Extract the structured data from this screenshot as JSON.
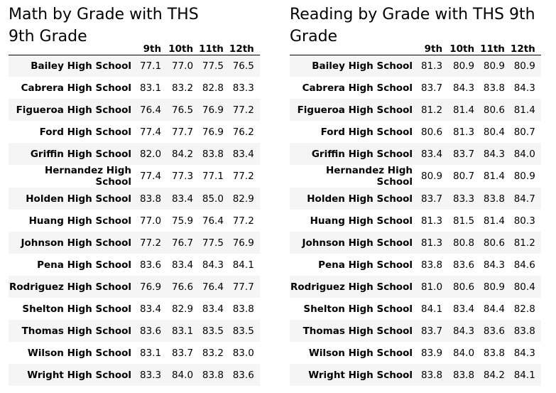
{
  "math": {
    "title": "Math by Grade with THS 9th Grade",
    "columns": [
      "9th",
      "10th",
      "11th",
      "12th"
    ],
    "rows": [
      {
        "school": "Bailey High School",
        "values": [
          "77.1",
          "77.0",
          "77.5",
          "76.5"
        ]
      },
      {
        "school": "Cabrera High School",
        "values": [
          "83.1",
          "83.2",
          "82.8",
          "83.3"
        ]
      },
      {
        "school": "Figueroa High School",
        "values": [
          "76.4",
          "76.5",
          "76.9",
          "77.2"
        ]
      },
      {
        "school": "Ford High School",
        "values": [
          "77.4",
          "77.7",
          "76.9",
          "76.2"
        ]
      },
      {
        "school": "Griffin High School",
        "values": [
          "82.0",
          "84.2",
          "83.8",
          "83.4"
        ]
      },
      {
        "school": "Hernandez High School",
        "values": [
          "77.4",
          "77.3",
          "77.1",
          "77.2"
        ]
      },
      {
        "school": "Holden High School",
        "values": [
          "83.8",
          "83.4",
          "85.0",
          "82.9"
        ]
      },
      {
        "school": "Huang High School",
        "values": [
          "77.0",
          "75.9",
          "76.4",
          "77.2"
        ]
      },
      {
        "school": "Johnson High School",
        "values": [
          "77.2",
          "76.7",
          "77.5",
          "76.9"
        ]
      },
      {
        "school": "Pena High School",
        "values": [
          "83.6",
          "83.4",
          "84.3",
          "84.1"
        ]
      },
      {
        "school": "Rodriguez High School",
        "values": [
          "76.9",
          "76.6",
          "76.4",
          "77.7"
        ]
      },
      {
        "school": "Shelton High School",
        "values": [
          "83.4",
          "82.9",
          "83.4",
          "83.8"
        ]
      },
      {
        "school": "Thomas High School",
        "values": [
          "83.6",
          "83.1",
          "83.5",
          "83.5"
        ]
      },
      {
        "school": "Wilson High School",
        "values": [
          "83.1",
          "83.7",
          "83.2",
          "83.0"
        ]
      },
      {
        "school": "Wright High School",
        "values": [
          "83.3",
          "84.0",
          "83.8",
          "83.6"
        ]
      }
    ]
  },
  "reading": {
    "title": "Reading by Grade with THS 9th Grade",
    "columns": [
      "9th",
      "10th",
      "11th",
      "12th"
    ],
    "rows": [
      {
        "school": "Bailey High School",
        "values": [
          "81.3",
          "80.9",
          "80.9",
          "80.9"
        ]
      },
      {
        "school": "Cabrera High School",
        "values": [
          "83.7",
          "84.3",
          "83.8",
          "84.3"
        ]
      },
      {
        "school": "Figueroa High School",
        "values": [
          "81.2",
          "81.4",
          "80.6",
          "81.4"
        ]
      },
      {
        "school": "Ford High School",
        "values": [
          "80.6",
          "81.3",
          "80.4",
          "80.7"
        ]
      },
      {
        "school": "Griffin High School",
        "values": [
          "83.4",
          "83.7",
          "84.3",
          "84.0"
        ]
      },
      {
        "school": "Hernandez High School",
        "values": [
          "80.9",
          "80.7",
          "81.4",
          "80.9"
        ]
      },
      {
        "school": "Holden High School",
        "values": [
          "83.7",
          "83.3",
          "83.8",
          "84.7"
        ]
      },
      {
        "school": "Huang High School",
        "values": [
          "81.3",
          "81.5",
          "81.4",
          "80.3"
        ]
      },
      {
        "school": "Johnson High School",
        "values": [
          "81.3",
          "80.8",
          "80.6",
          "81.2"
        ]
      },
      {
        "school": "Pena High School",
        "values": [
          "83.8",
          "83.6",
          "84.3",
          "84.6"
        ]
      },
      {
        "school": "Rodriguez High School",
        "values": [
          "81.0",
          "80.6",
          "80.9",
          "80.4"
        ]
      },
      {
        "school": "Shelton High School",
        "values": [
          "84.1",
          "83.4",
          "84.4",
          "82.8"
        ]
      },
      {
        "school": "Thomas High School",
        "values": [
          "83.7",
          "84.3",
          "83.6",
          "83.8"
        ]
      },
      {
        "school": "Wilson High School",
        "values": [
          "83.9",
          "84.0",
          "83.8",
          "84.3"
        ]
      },
      {
        "school": "Wright High School",
        "values": [
          "83.8",
          "83.8",
          "84.2",
          "84.1"
        ]
      }
    ]
  }
}
